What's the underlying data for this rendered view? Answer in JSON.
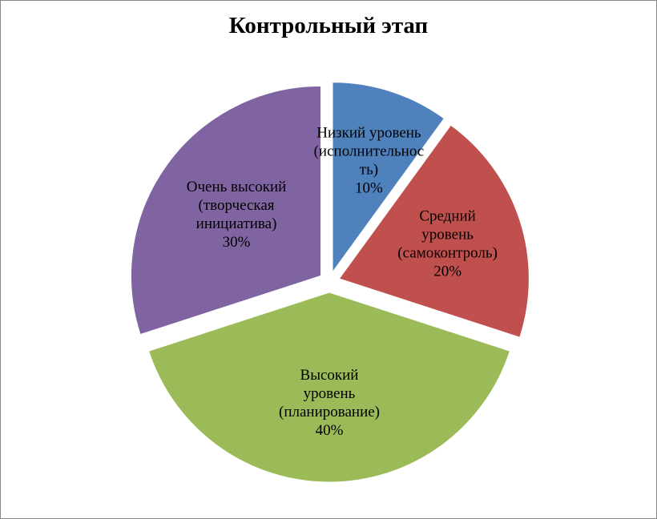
{
  "chart_data": {
    "type": "pie",
    "title": "Контрольный этап",
    "exploded": true,
    "slices": [
      {
        "name": "Низкий уровень (исполнительность)",
        "value": 10,
        "label_lines": [
          "Низкий уровень",
          "(исполнительнос",
          "ть)",
          "10%"
        ],
        "color": "#4F81BD"
      },
      {
        "name": "Средний уровень (самоконтроль)",
        "value": 20,
        "label_lines": [
          "Средний",
          "уровень",
          "(самоконтроль)",
          "20%"
        ],
        "color": "#C0504D"
      },
      {
        "name": "Высокий уровень (планирование)",
        "value": 40,
        "label_lines": [
          "Высокий",
          "уровень",
          "(планирование)",
          "40%"
        ],
        "color": "#9BBB59"
      },
      {
        "name": "Очень высокий (творческая инициатива)",
        "value": 30,
        "label_lines": [
          "Очень высокий",
          "(творческая",
          "инициатива)",
          "30%"
        ],
        "color": "#8064A2"
      }
    ]
  }
}
